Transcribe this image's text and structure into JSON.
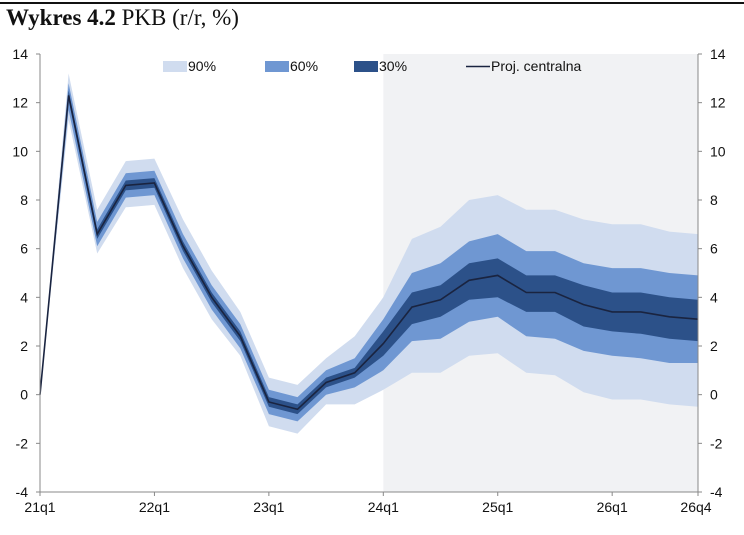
{
  "title": {
    "bold": "Wykres 4.2",
    "rest": "PKB (r/r, %)"
  },
  "colors": {
    "band90": "#d0dcef",
    "band60": "#6f97d2",
    "band30": "#2c5189",
    "central": "#1a2440",
    "forecast_shade": "#f1f2f4",
    "axis": "#888888"
  },
  "chart_data": {
    "type": "area",
    "y_range": [
      -4,
      14
    ],
    "y_ticks": [
      -4,
      -2,
      0,
      2,
      4,
      6,
      8,
      10,
      12,
      14
    ],
    "x_tick_labels": [
      "21q1",
      "22q1",
      "23q1",
      "24q1",
      "25q1",
      "26q1",
      "26q4"
    ],
    "forecast_start": "24q1",
    "legend": [
      "90%",
      "60%",
      "30%",
      "Proj. centralna"
    ],
    "quarters": [
      "21q1",
      "21q2",
      "21q3",
      "21q4",
      "22q1",
      "22q2",
      "22q3",
      "22q4",
      "23q1",
      "23q2",
      "23q3",
      "23q4",
      "24q1",
      "24q2",
      "24q3",
      "24q4",
      "25q1",
      "25q2",
      "25q3",
      "25q4",
      "26q1",
      "26q2",
      "26q3",
      "26q4"
    ],
    "central": [
      0.0,
      12.3,
      6.6,
      8.6,
      8.7,
      6.1,
      4.0,
      2.4,
      -0.3,
      -0.6,
      0.5,
      0.9,
      2.1,
      3.6,
      3.9,
      4.7,
      4.9,
      4.2,
      4.2,
      3.7,
      3.4,
      3.4,
      3.2,
      3.1
    ],
    "band30": {
      "low": [
        0.0,
        12.1,
        6.4,
        8.4,
        8.5,
        5.9,
        3.8,
        2.2,
        -0.5,
        -0.8,
        0.3,
        0.7,
        1.6,
        2.9,
        3.2,
        3.9,
        4.0,
        3.4,
        3.4,
        2.8,
        2.6,
        2.5,
        2.3,
        2.2
      ],
      "high": [
        0.0,
        12.5,
        6.8,
        8.8,
        8.9,
        6.3,
        4.2,
        2.6,
        -0.1,
        -0.4,
        0.7,
        1.1,
        2.6,
        4.2,
        4.5,
        5.4,
        5.6,
        4.9,
        4.9,
        4.5,
        4.2,
        4.2,
        4.0,
        3.9
      ]
    },
    "band60": {
      "low": [
        0.0,
        11.7,
        6.1,
        8.1,
        8.2,
        5.6,
        3.5,
        1.9,
        -0.8,
        -1.1,
        0.0,
        0.3,
        1.0,
        2.2,
        2.3,
        3.0,
        3.2,
        2.4,
        2.3,
        1.8,
        1.6,
        1.5,
        1.3,
        1.3
      ],
      "high": [
        0.0,
        12.8,
        7.1,
        9.1,
        9.2,
        6.6,
        4.5,
        2.9,
        0.2,
        -0.1,
        1.0,
        1.5,
        3.1,
        5.0,
        5.4,
        6.3,
        6.6,
        5.9,
        5.9,
        5.4,
        5.2,
        5.2,
        5.0,
        4.9
      ]
    },
    "band90": {
      "low": [
        0.0,
        11.3,
        5.8,
        7.7,
        7.8,
        5.2,
        3.1,
        1.6,
        -1.3,
        -1.6,
        -0.4,
        -0.4,
        0.2,
        0.9,
        0.9,
        1.6,
        1.7,
        0.9,
        0.8,
        0.1,
        -0.2,
        -0.2,
        -0.4,
        -0.5
      ],
      "high": [
        0.0,
        13.2,
        7.6,
        9.6,
        9.7,
        7.2,
        5.1,
        3.4,
        0.7,
        0.4,
        1.5,
        2.4,
        4.0,
        6.4,
        6.9,
        8.0,
        8.2,
        7.6,
        7.6,
        7.2,
        7.0,
        7.0,
        6.7,
        6.6
      ]
    }
  }
}
